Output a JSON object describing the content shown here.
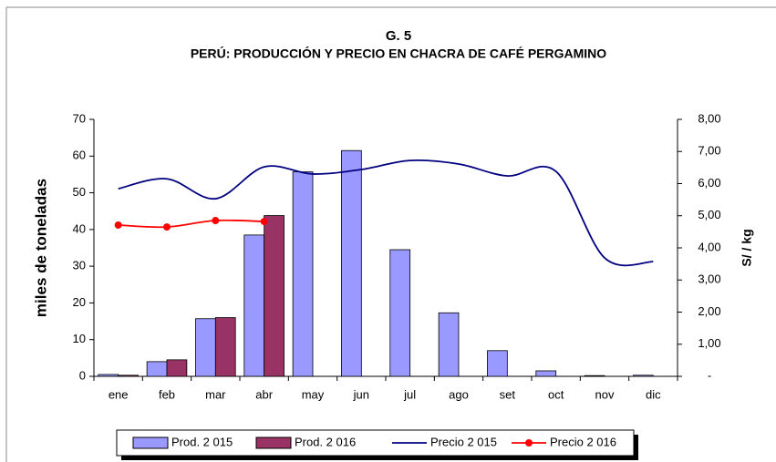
{
  "chart_data": {
    "type": "bar",
    "title": "G. 5",
    "subtitle": "PERÚ: PRODUCCIÓN Y PRECIO EN CHACRA DE CAFÉ PERGAMINO",
    "y_label": "miles de toneladas",
    "y2_label": "S/ / kg",
    "categories": [
      "ene",
      "feb",
      "mar",
      "abr",
      "may",
      "jun",
      "jul",
      "ago",
      "set",
      "oct",
      "nov",
      "dic"
    ],
    "series": [
      {
        "name": "Prod. 2 015",
        "type": "bar",
        "color": "#9999ff",
        "values": [
          0.5,
          4,
          15.7,
          38.5,
          55.7,
          61.5,
          34.5,
          17.3,
          7,
          1.5,
          0.2,
          0.3
        ]
      },
      {
        "name": "Prod. 2 016",
        "type": "bar",
        "color": "#993366",
        "values": [
          0.3,
          4.5,
          16,
          43.8,
          null,
          null,
          null,
          null,
          null,
          null,
          null,
          null
        ]
      },
      {
        "name": "Precio 2 015",
        "type": "line",
        "axis": "y2",
        "color": "#000080",
        "values": [
          5.84,
          6.15,
          5.53,
          6.52,
          6.3,
          6.44,
          6.72,
          6.61,
          6.24,
          6.38,
          3.69,
          3.57
        ]
      },
      {
        "name": "Precio 2 016",
        "type": "line",
        "axis": "y2",
        "color": "#ff0000",
        "markers": true,
        "values": [
          4.71,
          4.65,
          4.85,
          4.82,
          null,
          null,
          null,
          null,
          null,
          null,
          null,
          null
        ]
      }
    ],
    "ylim": [
      0,
      70
    ],
    "yticks": [
      0,
      10,
      20,
      30,
      40,
      50,
      60,
      70
    ],
    "y2lim": [
      0,
      8
    ],
    "y2ticks": [
      {
        "value": 0,
        "label": "-"
      },
      {
        "value": 1,
        "label": "1,00"
      },
      {
        "value": 2,
        "label": "2,00"
      },
      {
        "value": 3,
        "label": "3,00"
      },
      {
        "value": 4,
        "label": "4,00"
      },
      {
        "value": 5,
        "label": "5,00"
      },
      {
        "value": 6,
        "label": "6,00"
      },
      {
        "value": 7,
        "label": "7,00"
      },
      {
        "value": 8,
        "label": "8,00"
      }
    ],
    "grid": false,
    "legend": "bottom"
  }
}
